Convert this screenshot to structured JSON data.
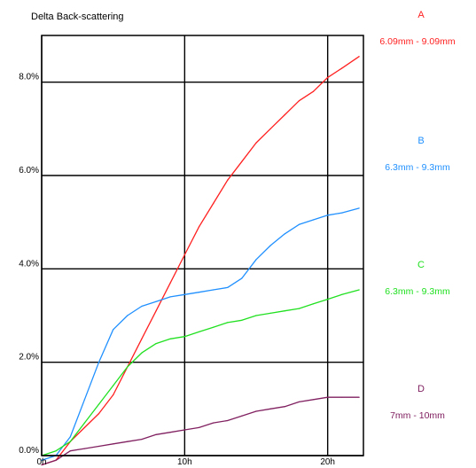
{
  "chart_data": {
    "type": "line",
    "title": "Delta Back-scattering",
    "xlabel": "",
    "ylabel": "",
    "xlim": [
      0,
      22.5
    ],
    "ylim": [
      0,
      9.0
    ],
    "grid": true,
    "legend_placement": "right",
    "x_ticks": [
      {
        "value": 0,
        "label": "0h"
      },
      {
        "value": 10,
        "label": "10h"
      },
      {
        "value": 20,
        "label": "20h"
      }
    ],
    "y_ticks": [
      {
        "value": 0,
        "label": "0.0%"
      },
      {
        "value": 2,
        "label": "2.0%"
      },
      {
        "value": 4,
        "label": "4.0%"
      },
      {
        "value": 6,
        "label": "6.0%"
      },
      {
        "value": 8,
        "label": "8.0%"
      }
    ],
    "series": [
      {
        "name": "A",
        "range": "6.09mm - 9.09mm",
        "color": "#ff2020",
        "x": [
          0,
          1,
          2,
          3,
          4,
          5,
          6,
          7,
          8,
          9,
          10,
          11,
          12,
          13,
          14,
          15,
          16,
          17,
          18,
          19,
          20,
          21,
          22.2
        ],
        "y": [
          -0.2,
          -0.1,
          0.3,
          0.6,
          0.9,
          1.3,
          1.9,
          2.5,
          3.1,
          3.7,
          4.3,
          4.9,
          5.4,
          5.9,
          6.3,
          6.7,
          7.0,
          7.3,
          7.6,
          7.8,
          8.1,
          8.3,
          8.55
        ]
      },
      {
        "name": "B",
        "range": "6.3mm - 9.3mm",
        "color": "#2090ff",
        "x": [
          0,
          1,
          2,
          3,
          4,
          5,
          6,
          7,
          8,
          9,
          10,
          11,
          12,
          13,
          14,
          15,
          16,
          17,
          18,
          19,
          20,
          21,
          22.2
        ],
        "y": [
          -0.1,
          0.0,
          0.4,
          1.2,
          2.0,
          2.7,
          3.0,
          3.2,
          3.3,
          3.4,
          3.45,
          3.5,
          3.55,
          3.6,
          3.8,
          4.2,
          4.5,
          4.75,
          4.95,
          5.05,
          5.15,
          5.2,
          5.3
        ]
      },
      {
        "name": "C",
        "range": "6.3mm - 9.3mm",
        "color": "#20e020",
        "x": [
          0,
          1,
          2,
          3,
          4,
          5,
          6,
          7,
          8,
          9,
          10,
          11,
          12,
          13,
          14,
          15,
          16,
          17,
          18,
          19,
          20,
          21,
          22.2
        ],
        "y": [
          0.0,
          0.1,
          0.3,
          0.7,
          1.1,
          1.5,
          1.9,
          2.2,
          2.4,
          2.5,
          2.55,
          2.65,
          2.75,
          2.85,
          2.9,
          3.0,
          3.05,
          3.1,
          3.15,
          3.25,
          3.35,
          3.45,
          3.55
        ]
      },
      {
        "name": "D",
        "range": "7mm - 10mm",
        "color": "#802060",
        "x": [
          0,
          1,
          2,
          3,
          4,
          5,
          6,
          7,
          8,
          9,
          10,
          11,
          12,
          13,
          14,
          15,
          16,
          17,
          18,
          19,
          20,
          21,
          22.2
        ],
        "y": [
          -0.2,
          -0.1,
          0.1,
          0.15,
          0.2,
          0.25,
          0.3,
          0.35,
          0.45,
          0.5,
          0.55,
          0.6,
          0.7,
          0.75,
          0.85,
          0.95,
          1.0,
          1.05,
          1.15,
          1.2,
          1.25,
          1.25,
          1.25
        ]
      }
    ]
  }
}
